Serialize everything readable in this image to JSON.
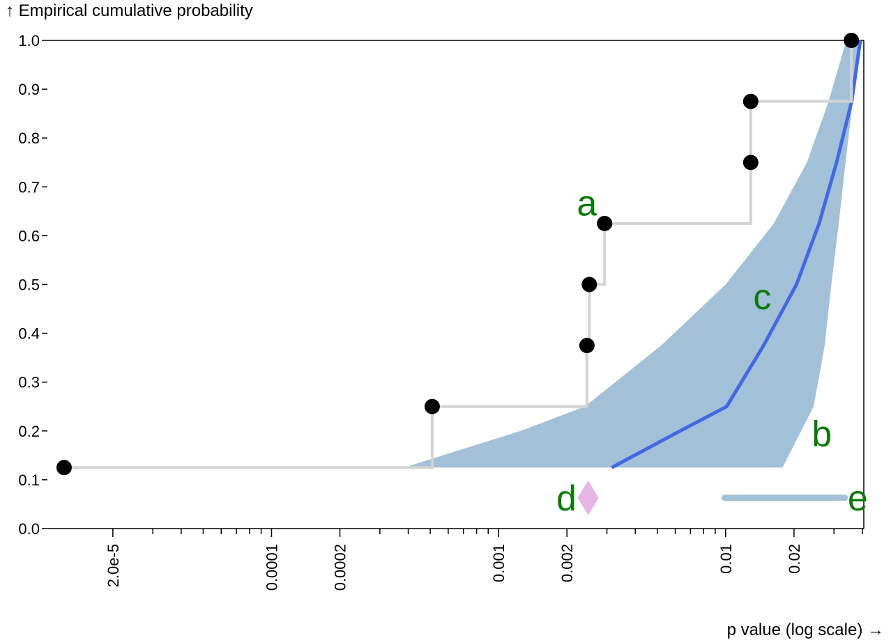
{
  "chart_data": {
    "type": "line",
    "xlabel": "p value (log scale) →",
    "ylabel": "↑ Empirical cumulative probability",
    "x_scale": "log",
    "xlim": [
      1.03e-05,
      0.0406
    ],
    "ylim": [
      0,
      1
    ],
    "x_tick_labels": [
      {
        "value": 2e-05,
        "label": "2.0e-5"
      },
      {
        "value": 0.0001,
        "label": "0.0001"
      },
      {
        "value": 0.0002,
        "label": "0.0002"
      },
      {
        "value": 0.001,
        "label": "0.001"
      },
      {
        "value": 0.002,
        "label": "0.002"
      },
      {
        "value": 0.01,
        "label": "0.01"
      },
      {
        "value": 0.02,
        "label": "0.02"
      }
    ],
    "y_ticks": [
      0,
      0.1,
      0.2,
      0.3,
      0.4,
      0.5,
      0.6,
      0.7,
      0.8,
      0.9,
      1.0
    ],
    "y_tick_labels": [
      "0.0",
      "0.1",
      "0.2",
      "0.3",
      "0.4",
      "0.5",
      "0.6",
      "0.7",
      "0.8",
      "0.9",
      "1.0"
    ],
    "colors": {
      "band": "#a3c0d9",
      "expected_line": "#4169e1",
      "step_line": "#d3d3d3",
      "points": "#000000",
      "diamond": "#e6b6e6",
      "annotations": "#0a7a0a"
    },
    "band": {
      "upper": [
        {
          "x": 0.000383,
          "y": 0.125
        },
        {
          "x": 0.00125,
          "y": 0.2
        },
        {
          "x": 0.0024,
          "y": 0.25
        },
        {
          "x": 0.0052,
          "y": 0.375
        },
        {
          "x": 0.01,
          "y": 0.5
        },
        {
          "x": 0.0163,
          "y": 0.625
        },
        {
          "x": 0.0228,
          "y": 0.75
        },
        {
          "x": 0.0284,
          "y": 0.875
        },
        {
          "x": 0.034,
          "y": 1.0
        },
        {
          "x": 0.0395,
          "y": 1.0
        }
      ],
      "lower": [
        {
          "x": 0.0395,
          "y": 1.0
        },
        {
          "x": 0.0363,
          "y": 0.875
        },
        {
          "x": 0.0337,
          "y": 0.75
        },
        {
          "x": 0.0315,
          "y": 0.625
        },
        {
          "x": 0.0292,
          "y": 0.5
        },
        {
          "x": 0.0273,
          "y": 0.375
        },
        {
          "x": 0.0244,
          "y": 0.25
        },
        {
          "x": 0.0178,
          "y": 0.125
        }
      ]
    },
    "expected_line": [
      {
        "x": 0.00315,
        "y": 0.125
      },
      {
        "x": 0.0063,
        "y": 0.2
      },
      {
        "x": 0.0101,
        "y": 0.25
      },
      {
        "x": 0.0147,
        "y": 0.375
      },
      {
        "x": 0.0205,
        "y": 0.5
      },
      {
        "x": 0.0258,
        "y": 0.625
      },
      {
        "x": 0.0308,
        "y": 0.75
      },
      {
        "x": 0.0359,
        "y": 0.875
      },
      {
        "x": 0.0392,
        "y": 1.0
      }
    ],
    "points": [
      {
        "x": 1.22e-05,
        "y": 0.125
      },
      {
        "x": 0.00051,
        "y": 0.25
      },
      {
        "x": 0.00245,
        "y": 0.375
      },
      {
        "x": 0.00251,
        "y": 0.5
      },
      {
        "x": 0.00293,
        "y": 0.625
      },
      {
        "x": 0.0129,
        "y": 0.75
      },
      {
        "x": 0.0129,
        "y": 0.875
      },
      {
        "x": 0.0358,
        "y": 1.0
      }
    ],
    "step_line": [
      {
        "x": 1.22e-05,
        "y": 0.125
      },
      {
        "x": 0.00051,
        "y": 0.125
      },
      {
        "x": 0.00051,
        "y": 0.25
      },
      {
        "x": 0.00245,
        "y": 0.25
      },
      {
        "x": 0.00245,
        "y": 0.375
      },
      {
        "x": 0.00251,
        "y": 0.375
      },
      {
        "x": 0.00251,
        "y": 0.5
      },
      {
        "x": 0.00293,
        "y": 0.5
      },
      {
        "x": 0.00293,
        "y": 0.625
      },
      {
        "x": 0.0129,
        "y": 0.625
      },
      {
        "x": 0.0129,
        "y": 0.875
      },
      {
        "x": 0.0358,
        "y": 0.875
      },
      {
        "x": 0.0358,
        "y": 1.0
      }
    ],
    "diamond": {
      "x": 0.00248,
      "y": 0.063
    },
    "legend_line": {
      "x1": 0.0099,
      "x2": 0.0335,
      "y": 0.063
    },
    "annotations": [
      {
        "text": "a",
        "x": 0.00245,
        "y": 0.667
      },
      {
        "text": "b",
        "x": 0.0265,
        "y": 0.195
      },
      {
        "text": "c",
        "x": 0.0145,
        "y": 0.475
      },
      {
        "text": "d",
        "x": 0.00199,
        "y": 0.063
      },
      {
        "text": "e",
        "x": 0.0382,
        "y": 0.063
      }
    ]
  }
}
